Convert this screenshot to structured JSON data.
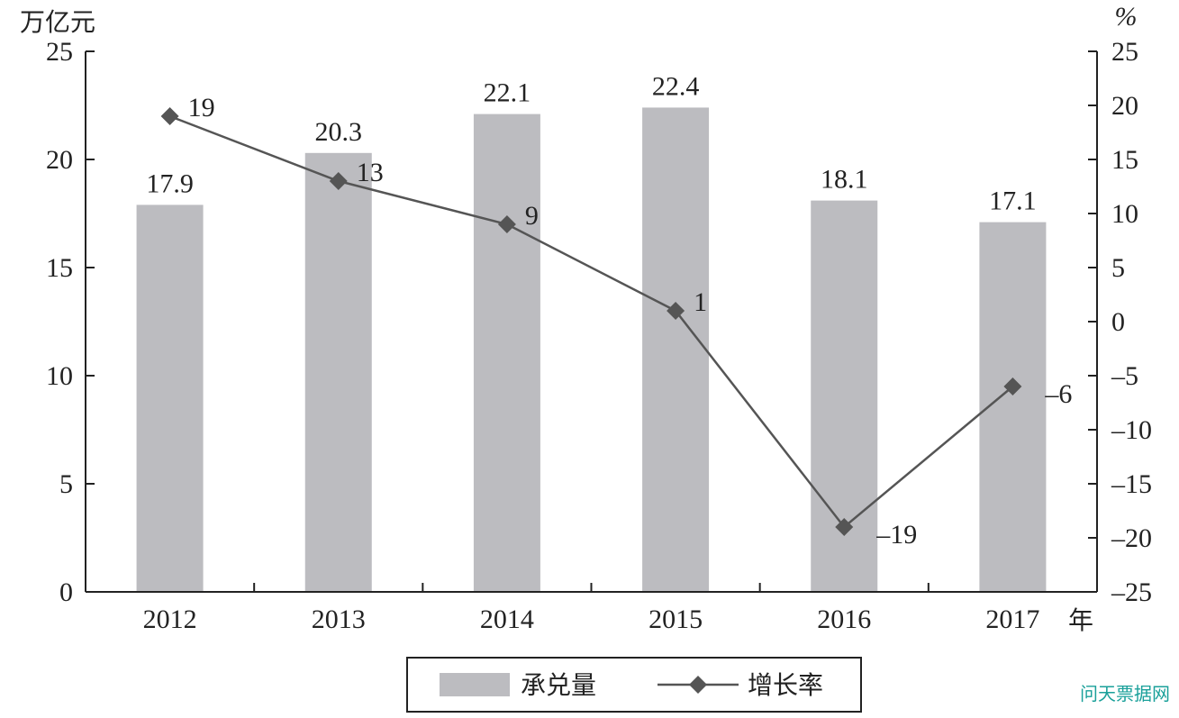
{
  "chart_data": {
    "type": "bar",
    "categories": [
      "2012",
      "2013",
      "2014",
      "2015",
      "2016",
      "2017"
    ],
    "series": [
      {
        "name": "承兑量",
        "type": "bar",
        "axis": "left",
        "values": [
          17.9,
          20.3,
          22.1,
          22.4,
          18.1,
          17.1
        ],
        "color": "#bcbcc0"
      },
      {
        "name": "增长率",
        "type": "line",
        "axis": "right",
        "values": [
          19,
          13,
          9,
          1,
          -19,
          -6
        ],
        "color": "#555555"
      }
    ],
    "data_labels_bar": [
      "17.9",
      "20.3",
      "22.1",
      "22.4",
      "18.1",
      "17.1"
    ],
    "data_labels_line": [
      "19",
      "13",
      "9",
      "1",
      "–19",
      "–6"
    ],
    "y_left": {
      "unit_label": "万亿元",
      "range": [
        0,
        25
      ],
      "ticks": [
        "0",
        "5",
        "10",
        "15",
        "20",
        "25"
      ]
    },
    "y_right": {
      "unit_label": "%",
      "range": [
        -25,
        25
      ],
      "ticks": [
        "–25",
        "–20",
        "–15",
        "–10",
        "–5",
        "0",
        "5",
        "10",
        "15",
        "20",
        "25"
      ]
    },
    "x_unit_label": "年",
    "grid": false,
    "legend_position": "bottom-center"
  },
  "watermark": "问天票据网"
}
